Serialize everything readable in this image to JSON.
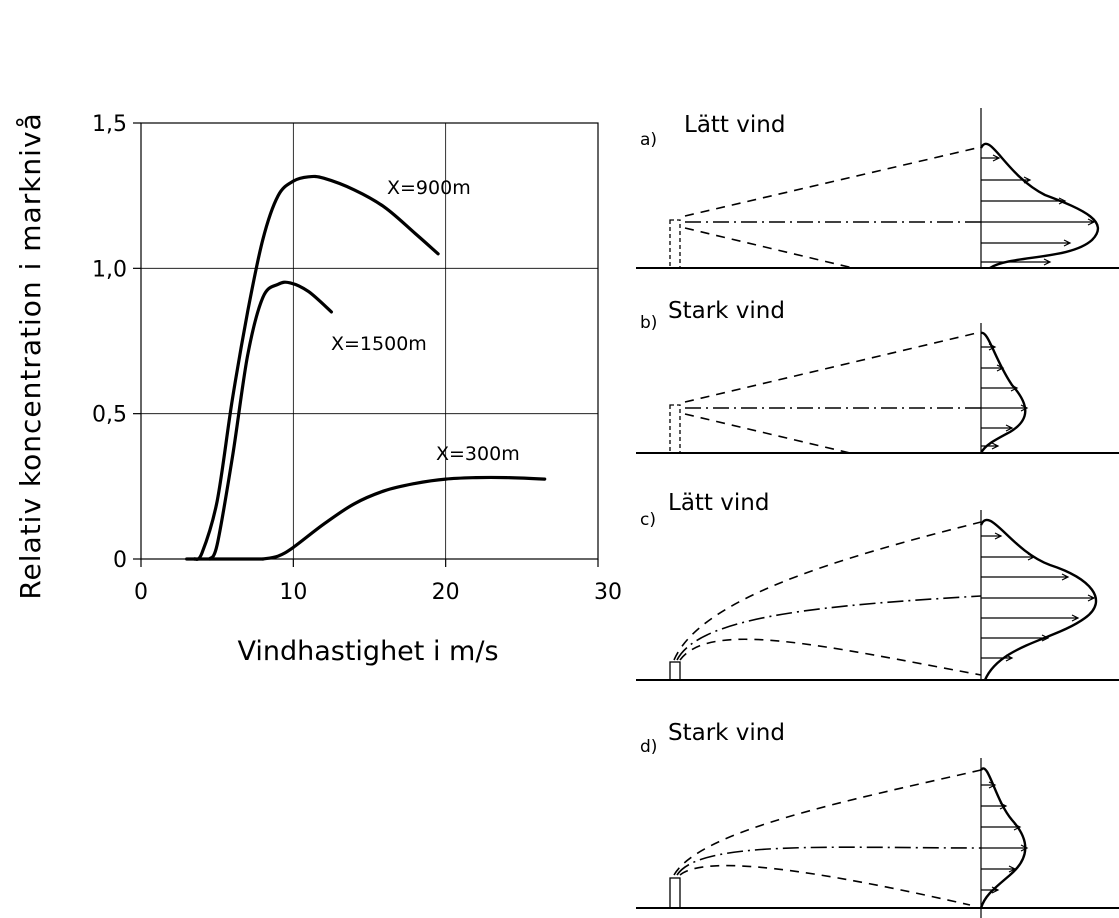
{
  "chart_data": [
    {
      "type": "line",
      "title": "",
      "xlabel": "Vindhastighet i m/s",
      "ylabel": "Relativ koncentration i marknivå",
      "xlim": [
        0,
        30
      ],
      "ylim": [
        0,
        1.5
      ],
      "x_ticks": [
        "0",
        "10",
        "20",
        "30"
      ],
      "y_ticks": [
        "0",
        "0,5",
        "1,0",
        "1,5"
      ],
      "grid": true,
      "series": [
        {
          "name": "X=900m",
          "points": [
            [
              3.5,
              0
            ],
            [
              4,
              0.02
            ],
            [
              5,
              0.2
            ],
            [
              6,
              0.55
            ],
            [
              7,
              0.85
            ],
            [
              8,
              1.1
            ],
            [
              9,
              1.25
            ],
            [
              10,
              1.3
            ],
            [
              11,
              1.315
            ],
            [
              12,
              1.31
            ],
            [
              14,
              1.27
            ],
            [
              16,
              1.21
            ],
            [
              18,
              1.12
            ],
            [
              19.5,
              1.05
            ]
          ]
        },
        {
          "name": "X=1500m",
          "points": [
            [
              4.5,
              0
            ],
            [
              5,
              0.05
            ],
            [
              6,
              0.35
            ],
            [
              7,
              0.7
            ],
            [
              8,
              0.9
            ],
            [
              9,
              0.945
            ],
            [
              9.8,
              0.95
            ],
            [
              11,
              0.92
            ],
            [
              12.5,
              0.85
            ]
          ]
        },
        {
          "name": "X=300m",
          "points": [
            [
              8,
              0
            ],
            [
              9,
              0.01
            ],
            [
              10,
              0.04
            ],
            [
              12,
              0.12
            ],
            [
              14,
              0.19
            ],
            [
              16,
              0.235
            ],
            [
              18,
              0.26
            ],
            [
              20,
              0.275
            ],
            [
              22,
              0.28
            ],
            [
              24,
              0.28
            ],
            [
              26.5,
              0.275
            ]
          ]
        }
      ]
    }
  ],
  "panels": [
    {
      "letter": "a)",
      "title": "Lätt vind"
    },
    {
      "letter": "b)",
      "title": "Stark vind"
    },
    {
      "letter": "c)",
      "title": "Lätt vind"
    },
    {
      "letter": "d)",
      "title": "Stark vind"
    }
  ]
}
